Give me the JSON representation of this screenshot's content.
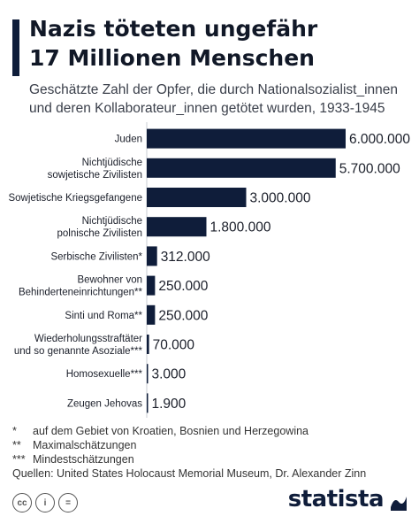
{
  "header": {
    "title_line1": "Nazis töteten ungefähr",
    "title_line2": "17 Millionen Menschen",
    "subtitle_line1": "Geschätzte Zahl der Opfer, die durch Nationalsozialist_innen",
    "subtitle_line2": "und deren Kollaborateur_innen getötet wurden, 1933-1945"
  },
  "chart_data": {
    "type": "bar",
    "orientation": "horizontal",
    "bar_color": "#0f1d3a",
    "categories": [
      [
        "Juden"
      ],
      [
        "Nichtjüdische",
        "sowjetische Zivilisten"
      ],
      [
        "Sowjetische Kriegsgefangene"
      ],
      [
        "Nichtjüdische",
        "polnische Zivilisten"
      ],
      [
        "Serbische Zivilisten*"
      ],
      [
        "Bewohner von",
        "Behinderteneinrichtungen**"
      ],
      [
        "Sinti und Roma**"
      ],
      [
        "Wiederholungsstraftäter",
        "und so genannte Asoziale***"
      ],
      [
        "Homosexuelle***"
      ],
      [
        "Zeugen Jehovas"
      ]
    ],
    "values": [
      6000000,
      5700000,
      3000000,
      1800000,
      312000,
      250000,
      250000,
      70000,
      3000,
      1900
    ],
    "value_labels": [
      "6.000.000",
      "5.700.000",
      "3.000.000",
      "1.800.000",
      "312.000",
      "250.000",
      "250.000",
      "70.000",
      "3.000",
      "1.900"
    ]
  },
  "footnotes": [
    {
      "mark": "*",
      "text": "auf dem Gebiet von Kroatien, Bosnien und Herzegowina"
    },
    {
      "mark": "**",
      "text": "Maximalschätzungen"
    },
    {
      "mark": "***",
      "text": "Mindestschätzungen"
    }
  ],
  "source": "Quellen: United States Holocaust Memorial Museum, Dr. Alexander Zinn",
  "footer": {
    "cc_label": "cc",
    "by_label": "i",
    "eq_label": "=",
    "brand": "statista"
  }
}
